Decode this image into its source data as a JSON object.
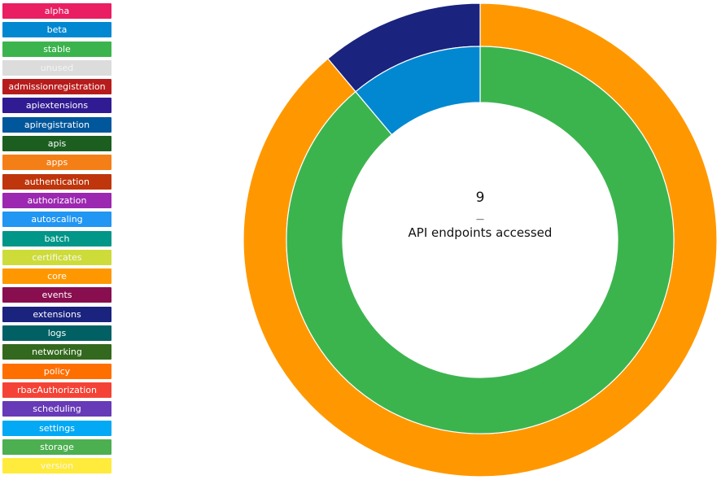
{
  "legend": [
    {
      "label": "alpha",
      "color": "#e91e63"
    },
    {
      "label": "beta",
      "color": "#0288d1"
    },
    {
      "label": "stable",
      "color": "#3cb44e"
    },
    {
      "label": "unused",
      "color": "#dcdcdc"
    },
    {
      "label": "admissionregistration",
      "color": "#b71c1c"
    },
    {
      "label": "apiextensions",
      "color": "#311b92"
    },
    {
      "label": "apiregistration",
      "color": "#01579b"
    },
    {
      "label": "apis",
      "color": "#1b5e20"
    },
    {
      "label": "apps",
      "color": "#f57f17"
    },
    {
      "label": "authentication",
      "color": "#bf360c"
    },
    {
      "label": "authorization",
      "color": "#9c27b0"
    },
    {
      "label": "autoscaling",
      "color": "#2196f3"
    },
    {
      "label": "batch",
      "color": "#009688"
    },
    {
      "label": "certificates",
      "color": "#cddc39"
    },
    {
      "label": "core",
      "color": "#ff9800"
    },
    {
      "label": "events",
      "color": "#880e4f"
    },
    {
      "label": "extensions",
      "color": "#1a237e"
    },
    {
      "label": "logs",
      "color": "#006064"
    },
    {
      "label": "networking",
      "color": "#33691e"
    },
    {
      "label": "policy",
      "color": "#ff6f00"
    },
    {
      "label": "rbacAuthorization",
      "color": "#f44336"
    },
    {
      "label": "scheduling",
      "color": "#673ab7"
    },
    {
      "label": "settings",
      "color": "#03a9f4"
    },
    {
      "label": "storage",
      "color": "#4caf50"
    },
    {
      "label": "version",
      "color": "#ffeb3b"
    }
  ],
  "center": {
    "value": "9",
    "separator": "__",
    "caption": "API endpoints accessed"
  },
  "chart_data": {
    "type": "pie",
    "subtype": "double-donut",
    "title": "",
    "rings": [
      {
        "ring": "outer",
        "slices": [
          {
            "category": "core",
            "value": 8,
            "color": "#ff9800"
          },
          {
            "category": "extensions",
            "value": 1,
            "color": "#1a237e"
          }
        ]
      },
      {
        "ring": "inner",
        "slices": [
          {
            "category": "stable",
            "value": 8,
            "color": "#3cb44e"
          },
          {
            "category": "beta",
            "value": 1,
            "color": "#0288d1"
          }
        ]
      }
    ],
    "legend_position": "left"
  }
}
